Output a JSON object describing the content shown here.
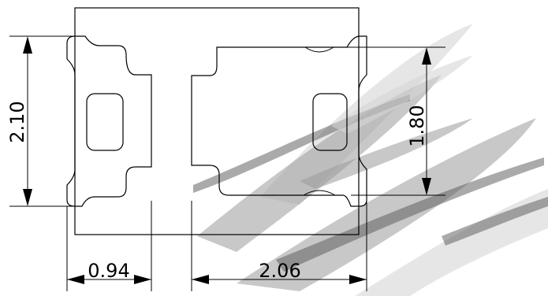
{
  "dimensions": {
    "height_left": "2.10",
    "height_right": "1.80",
    "width_left": "0.94",
    "width_right": "2.06"
  },
  "colors": {
    "line": "#000000",
    "background": "#ffffff",
    "smear": "#9a9a9a"
  }
}
